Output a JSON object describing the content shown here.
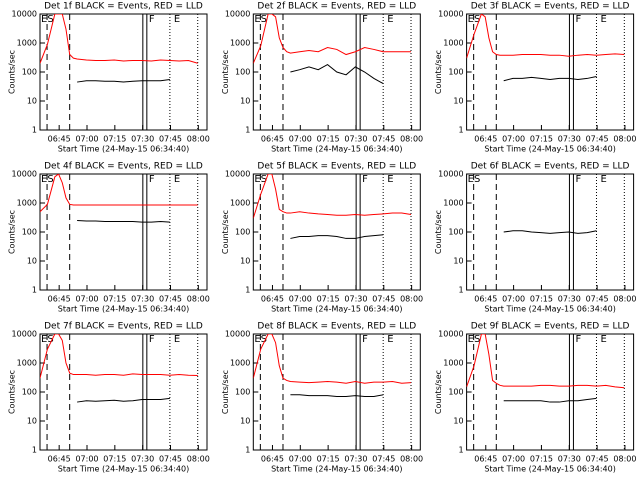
{
  "axes": {
    "xlabel": "Start Time (24-May-15 06:34:40)",
    "ylabel": "Counts/sec",
    "xlim": [
      0,
      90
    ],
    "xticks": [
      {
        "value": 10.33,
        "label": "06:45"
      },
      {
        "value": 25.33,
        "label": "07:00"
      },
      {
        "value": 40.33,
        "label": "07:15"
      },
      {
        "value": 55.33,
        "label": "07:30"
      },
      {
        "value": 70.33,
        "label": "07:45"
      },
      {
        "value": 85.33,
        "label": "08:00"
      }
    ],
    "ylim": [
      1,
      10000
    ],
    "yticks": [
      1,
      10,
      100,
      1000,
      10000
    ],
    "log_y": true,
    "x": [
      0,
      4,
      8,
      10,
      12,
      14,
      16,
      18,
      20,
      25,
      30,
      35,
      40,
      45,
      50,
      55,
      60,
      65,
      70,
      75,
      80,
      85
    ],
    "markers": [
      {
        "x": 3.8,
        "style": "dashed",
        "label": "ES"
      },
      {
        "x": 16,
        "style": "dashed"
      },
      {
        "x": 56.5,
        "style": "double",
        "label": "F"
      },
      {
        "x": 70,
        "style": "dotted",
        "label": "E"
      },
      {
        "x": 85,
        "style": "dotted"
      }
    ]
  },
  "chart_data": [
    {
      "type": "line",
      "title": "Det 1f BLACK = Events, RED = LLD",
      "series": [
        {
          "name": "LLD",
          "color": "#ff0000",
          "values": [
            200,
            900,
            10000,
            10000,
            10000,
            3000,
            400,
            300,
            280,
            260,
            250,
            250,
            260,
            240,
            250,
            250,
            240,
            260,
            250,
            240,
            250,
            200
          ]
        },
        {
          "name": "Events",
          "color": "#000000",
          "values": [
            null,
            null,
            null,
            null,
            null,
            null,
            null,
            null,
            45,
            50,
            50,
            48,
            48,
            45,
            48,
            50,
            50,
            50,
            55,
            null,
            null,
            null
          ]
        }
      ]
    },
    {
      "type": "line",
      "title": "Det 2f BLACK = Events, RED = LLD",
      "series": [
        {
          "name": "LLD",
          "color": "#ff0000",
          "values": [
            200,
            800,
            10000,
            10000,
            8000,
            1500,
            700,
            500,
            450,
            500,
            550,
            500,
            700,
            600,
            400,
            500,
            700,
            600,
            500,
            500,
            500,
            500
          ]
        },
        {
          "name": "Events",
          "color": "#000000",
          "values": [
            null,
            null,
            null,
            null,
            null,
            null,
            null,
            null,
            100,
            120,
            150,
            120,
            180,
            100,
            80,
            150,
            100,
            60,
            40,
            null,
            null,
            null
          ]
        }
      ]
    },
    {
      "type": "line",
      "title": "Det 3f BLACK = Events, RED = LLD",
      "series": [
        {
          "name": "LLD",
          "color": "#ff0000",
          "values": [
            300,
            2000,
            10000,
            8000,
            1500,
            500,
            400,
            380,
            380,
            380,
            400,
            400,
            400,
            380,
            380,
            350,
            380,
            400,
            380,
            400,
            420,
            400
          ]
        },
        {
          "name": "Events",
          "color": "#000000",
          "values": [
            null,
            null,
            null,
            null,
            null,
            null,
            null,
            null,
            50,
            60,
            60,
            65,
            60,
            55,
            60,
            60,
            55,
            60,
            70,
            null,
            null,
            null
          ]
        }
      ]
    },
    {
      "type": "line",
      "title": "Det 4f BLACK = Events, RED = LLD",
      "series": [
        {
          "name": "LLD",
          "color": "#ff0000",
          "values": [
            500,
            900,
            8000,
            10000,
            5000,
            1500,
            900,
            850,
            850,
            850,
            850,
            850,
            850,
            850,
            850,
            850,
            850,
            850,
            850,
            850,
            850,
            850
          ]
        },
        {
          "name": "Events",
          "color": "#000000",
          "values": [
            null,
            null,
            null,
            null,
            null,
            null,
            null,
            null,
            250,
            240,
            240,
            230,
            230,
            230,
            230,
            220,
            220,
            230,
            220,
            null,
            null,
            null
          ]
        }
      ]
    },
    {
      "type": "line",
      "title": "Det 5f BLACK = Events, RED = LLD",
      "series": [
        {
          "name": "LLD",
          "color": "#ff0000",
          "values": [
            300,
            2000,
            10000,
            10000,
            3000,
            600,
            500,
            450,
            450,
            500,
            450,
            420,
            400,
            380,
            380,
            400,
            380,
            400,
            420,
            450,
            450,
            400
          ]
        },
        {
          "name": "Events",
          "color": "#000000",
          "values": [
            null,
            null,
            null,
            null,
            null,
            null,
            null,
            null,
            60,
            70,
            70,
            75,
            75,
            70,
            60,
            60,
            70,
            75,
            80,
            null,
            null,
            null
          ]
        }
      ]
    },
    {
      "type": "line",
      "title": "Det 6f BLACK = Events, RED = LLD",
      "series": [
        {
          "name": "Events",
          "color": "#000000",
          "values": [
            null,
            null,
            null,
            null,
            null,
            null,
            null,
            null,
            100,
            110,
            110,
            100,
            95,
            90,
            95,
            100,
            90,
            95,
            110,
            null,
            null,
            null
          ]
        }
      ]
    },
    {
      "type": "line",
      "title": "Det 7f BLACK = Events, RED = LLD",
      "series": [
        {
          "name": "LLD",
          "color": "#ff0000",
          "values": [
            300,
            3000,
            10000,
            10000,
            6000,
            1000,
            450,
            400,
            400,
            400,
            380,
            400,
            400,
            380,
            420,
            400,
            400,
            400,
            380,
            400,
            380,
            370
          ]
        },
        {
          "name": "Events",
          "color": "#000000",
          "values": [
            null,
            null,
            null,
            null,
            null,
            null,
            null,
            null,
            45,
            50,
            48,
            50,
            52,
            48,
            50,
            55,
            55,
            55,
            60,
            null,
            null,
            null
          ]
        }
      ]
    },
    {
      "type": "line",
      "title": "Det 8f BLACK = Events, RED = LLD",
      "series": [
        {
          "name": "LLD",
          "color": "#ff0000",
          "values": [
            300,
            3000,
            10000,
            10000,
            5000,
            800,
            300,
            250,
            230,
            220,
            210,
            220,
            230,
            220,
            200,
            230,
            200,
            220,
            220,
            230,
            200,
            210
          ]
        },
        {
          "name": "Events",
          "color": "#000000",
          "values": [
            null,
            null,
            null,
            null,
            null,
            null,
            null,
            null,
            80,
            80,
            75,
            75,
            75,
            70,
            70,
            75,
            70,
            70,
            80,
            null,
            null,
            null
          ]
        }
      ]
    },
    {
      "type": "line",
      "title": "Det 9f BLACK = Events, RED = LLD",
      "series": [
        {
          "name": "LLD",
          "color": "#ff0000",
          "values": [
            150,
            800,
            10000,
            10000,
            2000,
            250,
            200,
            170,
            160,
            160,
            160,
            160,
            170,
            170,
            160,
            160,
            170,
            170,
            160,
            170,
            150,
            140
          ]
        },
        {
          "name": "Events",
          "color": "#000000",
          "values": [
            null,
            null,
            null,
            null,
            null,
            null,
            null,
            null,
            50,
            50,
            50,
            50,
            50,
            45,
            45,
            50,
            50,
            55,
            60,
            null,
            null,
            null
          ]
        }
      ]
    }
  ]
}
